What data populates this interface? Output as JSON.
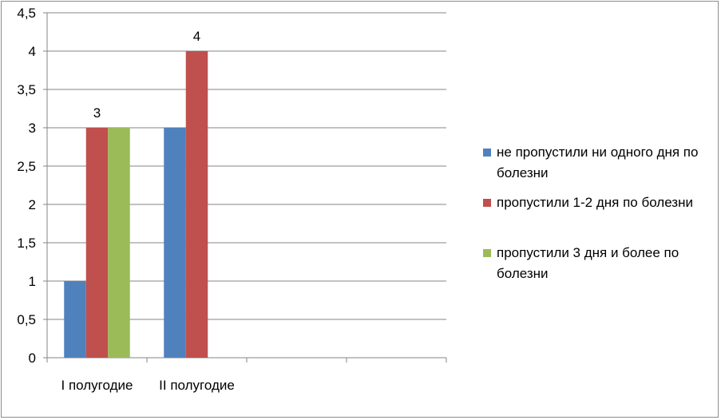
{
  "chart_data": {
    "type": "bar",
    "categories": [
      "I полугодие",
      "II полугодие",
      "",
      ""
    ],
    "series": [
      {
        "name": "не пропустили ни одного дня по болезни",
        "values": [
          1,
          3,
          null,
          null
        ],
        "color": "#4f81bd"
      },
      {
        "name": "пропустили 1-2 дня по болезни",
        "values": [
          3,
          4,
          null,
          null
        ],
        "color": "#c0504d"
      },
      {
        "name": "пропустили 3 дня и более по болезни",
        "values": [
          3,
          0,
          null,
          null
        ],
        "color": "#9bbb59"
      }
    ],
    "data_labels": [
      {
        "category": 0,
        "series": 1,
        "text": "3"
      },
      {
        "category": 1,
        "series": 1,
        "text": "4"
      }
    ],
    "y_ticks": [
      "0",
      "0,5",
      "1",
      "1,5",
      "2",
      "2,5",
      "3",
      "3,5",
      "4",
      "4,5"
    ],
    "ylim": [
      0,
      4.5
    ],
    "grid": true,
    "legend_position": "right",
    "title": "",
    "xlabel": "",
    "ylabel": ""
  }
}
